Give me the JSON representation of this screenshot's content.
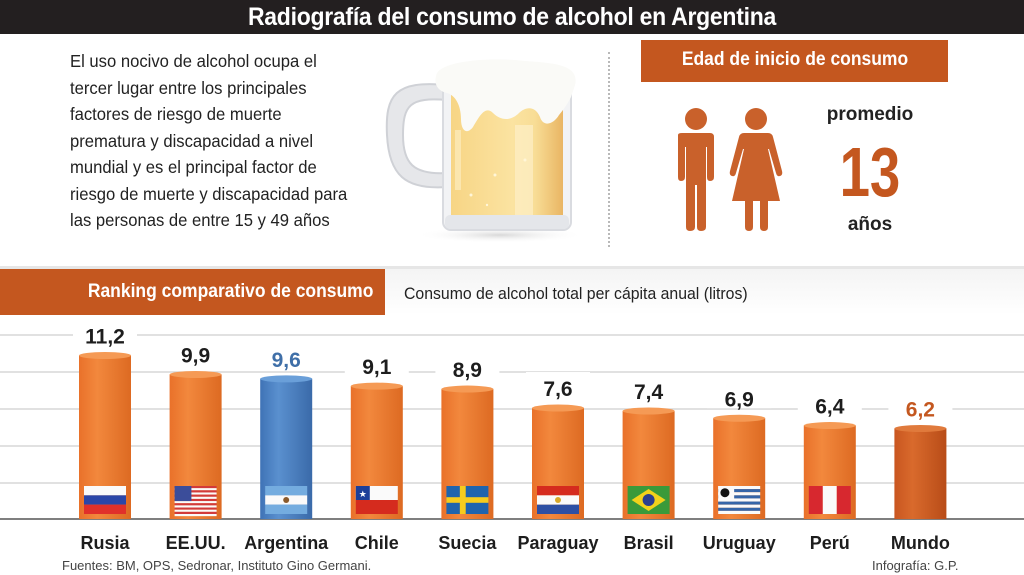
{
  "title": "Radiografía del consumo de alcohol en Argentina",
  "intro": {
    "lines": [
      "El uso nocivo de alcohol ocupa el",
      "tercer lugar entre los principales",
      "factores de riesgo de muerte",
      "prematura y discapacidad a nivel",
      "mundial y es el principal factor de",
      "riesgo de muerte y discapacidad para",
      "las personas de entre 15 y 49 años"
    ],
    "illustration": "beer-mug-icon"
  },
  "age_section": {
    "header": "Edad de inicio de consumo",
    "icons": [
      "man-icon",
      "woman-icon"
    ],
    "label_top": "promedio",
    "value": "13",
    "label_bottom": "años"
  },
  "ranking": {
    "header": "Ranking comparativo de consumo",
    "subtitle": "Consumo de alcohol total per cápita anual (litros)"
  },
  "colors": {
    "accent": "#c4571f",
    "bar": "#ef7d31",
    "bar_highlight_argentina": "#4a7fc1",
    "bar_world": "#c95b1e",
    "label_argentina": "#3f6fa8",
    "label_world": "#c4571f",
    "title_bg": "#231f20"
  },
  "chart_data": {
    "type": "bar",
    "title": "Ranking comparativo de consumo",
    "subtitle": "Consumo de alcohol total per cápita anual (litros)",
    "xlabel": "",
    "ylabel": "litros",
    "ylim": [
      0,
      13.3
    ],
    "grid": true,
    "categories": [
      "Rusia",
      "EE.UU.",
      "Argentina",
      "Chile",
      "Suecia",
      "Paraguay",
      "Brasil",
      "Uruguay",
      "Perú",
      "Mundo"
    ],
    "values": [
      11.2,
      9.9,
      9.6,
      9.1,
      8.9,
      7.6,
      7.4,
      6.9,
      6.4,
      6.2
    ],
    "value_labels": [
      "11,2",
      "9,9",
      "9,6",
      "9,1",
      "8,9",
      "7,6",
      "7,4",
      "6,9",
      "6,4",
      "6,2"
    ],
    "flags": [
      "russia-flag-icon",
      "usa-flag-icon",
      "argentina-flag-icon",
      "chile-flag-icon",
      "sweden-flag-icon",
      "paraguay-flag-icon",
      "brazil-flag-icon",
      "uruguay-flag-icon",
      "peru-flag-icon",
      null
    ],
    "highlight": {
      "Argentina": "blue",
      "Mundo": "dark-orange"
    }
  },
  "footer": {
    "sources": "Fuentes: BM, OPS, Sedronar, Instituto Gino Germani.",
    "credit": "Infografía: G.P."
  }
}
